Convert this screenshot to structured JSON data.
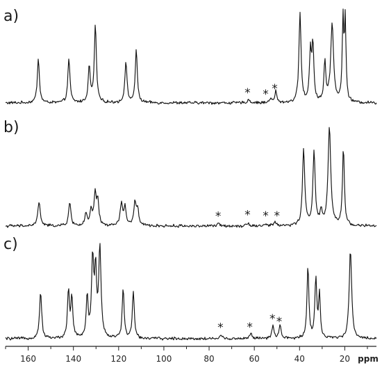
{
  "chart_data": {
    "type": "line",
    "xlabel": "ppm",
    "xlim": [
      170,
      6
    ],
    "x_reversed": true,
    "x_ticks": [
      160,
      140,
      120,
      100,
      80,
      60,
      40,
      20
    ],
    "y_ticks_shown": false,
    "grid": false,
    "legend": "none",
    "panels": [
      {
        "label": "a)",
        "peaks": [
          {
            "ppm": 155.5,
            "height": 0.54,
            "width": 0.55
          },
          {
            "ppm": 142.0,
            "height": 0.54,
            "width": 0.55
          },
          {
            "ppm": 133.0,
            "height": 0.43,
            "width": 0.55
          },
          {
            "ppm": 130.3,
            "height": 0.94,
            "width": 0.55
          },
          {
            "ppm": 116.8,
            "height": 0.5,
            "width": 0.55
          },
          {
            "ppm": 112.2,
            "height": 0.63,
            "width": 0.55
          },
          {
            "ppm": 62.5,
            "height": 0.04,
            "width": 0.6
          },
          {
            "ppm": 52.8,
            "height": 0.06,
            "width": 0.5
          },
          {
            "ppm": 50.5,
            "height": 0.15,
            "width": 0.45
          },
          {
            "ppm": 39.8,
            "height": 1.1,
            "width": 0.55
          },
          {
            "ppm": 35.2,
            "height": 0.6,
            "width": 0.5
          },
          {
            "ppm": 34.1,
            "height": 0.68,
            "width": 0.5
          },
          {
            "ppm": 28.8,
            "height": 0.48,
            "width": 0.5
          },
          {
            "ppm": 25.6,
            "height": 0.95,
            "width": 0.75
          },
          {
            "ppm": 20.8,
            "height": 0.98,
            "width": 0.4
          },
          {
            "ppm": 19.8,
            "height": 0.98,
            "width": 0.4
          }
        ],
        "stars_ppm": [
          63,
          55,
          51
        ]
      },
      {
        "label": "b)",
        "peaks": [
          {
            "ppm": 155.2,
            "height": 0.29,
            "width": 0.65
          },
          {
            "ppm": 141.6,
            "height": 0.28,
            "width": 0.6
          },
          {
            "ppm": 134.5,
            "height": 0.15,
            "width": 0.55
          },
          {
            "ppm": 132.2,
            "height": 0.18,
            "width": 0.55
          },
          {
            "ppm": 130.4,
            "height": 0.38,
            "width": 0.6
          },
          {
            "ppm": 129.2,
            "height": 0.28,
            "width": 0.55
          },
          {
            "ppm": 118.8,
            "height": 0.26,
            "width": 0.65
          },
          {
            "ppm": 117.2,
            "height": 0.22,
            "width": 0.6
          },
          {
            "ppm": 112.8,
            "height": 0.27,
            "width": 0.6
          },
          {
            "ppm": 111.6,
            "height": 0.2,
            "width": 0.55
          },
          {
            "ppm": 75.6,
            "height": 0.03,
            "width": 0.6
          },
          {
            "ppm": 62.8,
            "height": 0.04,
            "width": 0.6
          },
          {
            "ppm": 55.0,
            "height": 0.02,
            "width": 0.6
          },
          {
            "ppm": 50.8,
            "height": 0.05,
            "width": 0.6
          },
          {
            "ppm": 38.2,
            "height": 0.92,
            "width": 0.6
          },
          {
            "ppm": 33.6,
            "height": 0.9,
            "width": 0.6
          },
          {
            "ppm": 30.4,
            "height": 0.15,
            "width": 0.6
          },
          {
            "ppm": 26.8,
            "height": 1.2,
            "width": 0.7
          },
          {
            "ppm": 20.6,
            "height": 0.95,
            "width": 0.5
          }
        ],
        "stars_ppm": [
          76,
          63,
          55,
          50
        ]
      },
      {
        "label": "c)",
        "peaks": [
          {
            "ppm": 154.5,
            "height": 0.58,
            "width": 0.55
          },
          {
            "ppm": 142.2,
            "height": 0.58,
            "width": 0.5
          },
          {
            "ppm": 140.7,
            "height": 0.5,
            "width": 0.5
          },
          {
            "ppm": 133.9,
            "height": 0.5,
            "width": 0.5
          },
          {
            "ppm": 131.5,
            "height": 0.96,
            "width": 0.55
          },
          {
            "ppm": 130.2,
            "height": 0.78,
            "width": 0.5
          },
          {
            "ppm": 128.3,
            "height": 1.1,
            "width": 0.6
          },
          {
            "ppm": 118.0,
            "height": 0.61,
            "width": 0.5
          },
          {
            "ppm": 113.5,
            "height": 0.58,
            "width": 0.5
          },
          {
            "ppm": 74.8,
            "height": 0.04,
            "width": 0.6
          },
          {
            "ppm": 61.5,
            "height": 0.07,
            "width": 0.6
          },
          {
            "ppm": 51.8,
            "height": 0.16,
            "width": 0.5
          },
          {
            "ppm": 48.6,
            "height": 0.17,
            "width": 0.5
          },
          {
            "ppm": 36.3,
            "height": 0.88,
            "width": 0.5
          },
          {
            "ppm": 32.8,
            "height": 0.73,
            "width": 0.5
          },
          {
            "ppm": 31.2,
            "height": 0.53,
            "width": 0.45
          },
          {
            "ppm": 17.5,
            "height": 1.08,
            "width": 0.65
          }
        ],
        "stars_ppm": [
          75,
          62,
          52,
          49
        ]
      }
    ]
  }
}
